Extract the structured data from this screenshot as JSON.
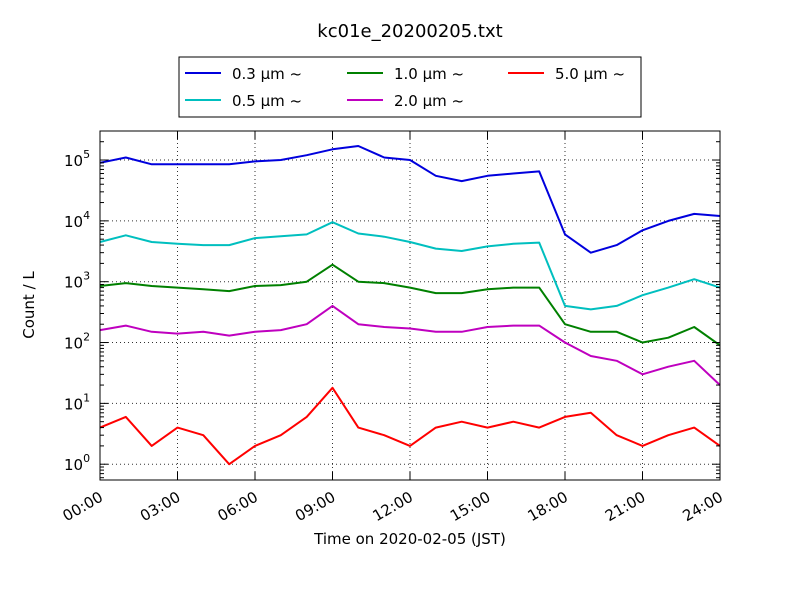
{
  "chart_data": {
    "type": "line",
    "title": "kc01e_20200205.txt",
    "xlabel": "Time on 2020-02-05 (JST)",
    "ylabel": "Count / L",
    "yscale": "log",
    "ylim": [
      0.55,
      300000
    ],
    "xlim": [
      "00:00",
      "24:00"
    ],
    "x_ticks": [
      "00:00",
      "03:00",
      "06:00",
      "09:00",
      "12:00",
      "15:00",
      "18:00",
      "21:00",
      "24:00"
    ],
    "y_ticks": [
      {
        "value": 1,
        "base": "10",
        "exp": "0"
      },
      {
        "value": 10,
        "base": "10",
        "exp": "1"
      },
      {
        "value": 100,
        "base": "10",
        "exp": "2"
      },
      {
        "value": 1000,
        "base": "10",
        "exp": "3"
      },
      {
        "value": 10000,
        "base": "10",
        "exp": "4"
      },
      {
        "value": 100000,
        "base": "10",
        "exp": "5"
      }
    ],
    "grid": true,
    "legend_position": "top-center",
    "x": [
      "00:00",
      "01:00",
      "02:00",
      "03:00",
      "04:00",
      "05:00",
      "06:00",
      "07:00",
      "08:00",
      "09:00",
      "10:00",
      "11:00",
      "12:00",
      "13:00",
      "14:00",
      "15:00",
      "16:00",
      "17:00",
      "18:00",
      "19:00",
      "20:00",
      "21:00",
      "22:00",
      "23:00",
      "24:00"
    ],
    "series": [
      {
        "name": "0.3 µm ~",
        "color": "#0000dd",
        "values": [
          90000,
          110000,
          85000,
          85000,
          85000,
          85000,
          95000,
          100000,
          120000,
          150000,
          170000,
          110000,
          100000,
          55000,
          45000,
          55000,
          60000,
          65000,
          6000,
          3000,
          4000,
          7000,
          10000,
          13000,
          12000
        ]
      },
      {
        "name": "0.5 µm ~",
        "color": "#00bfbf",
        "values": [
          4500,
          5800,
          4500,
          4200,
          4000,
          4000,
          5200,
          5600,
          6000,
          9500,
          6200,
          5500,
          4500,
          3500,
          3200,
          3800,
          4200,
          4400,
          400,
          350,
          400,
          600,
          800,
          1100,
          800
        ]
      },
      {
        "name": "1.0 µm ~",
        "color": "#008000",
        "values": [
          850,
          950,
          850,
          800,
          750,
          700,
          850,
          880,
          1000,
          1900,
          1000,
          950,
          800,
          650,
          650,
          750,
          800,
          800,
          200,
          150,
          150,
          100,
          120,
          180,
          90
        ]
      },
      {
        "name": "2.0 µm ~",
        "color": "#bf00bf",
        "values": [
          160,
          190,
          150,
          140,
          150,
          130,
          150,
          160,
          200,
          400,
          200,
          180,
          170,
          150,
          150,
          180,
          190,
          190,
          100,
          60,
          50,
          30,
          40,
          50,
          20
        ]
      },
      {
        "name": "5.0 µm ~",
        "color": "#ff0000",
        "values": [
          4,
          6,
          2,
          4,
          3,
          1,
          2,
          3,
          6,
          18,
          4,
          3,
          2,
          4,
          5,
          4,
          5,
          4,
          6,
          7,
          3,
          2,
          3,
          4,
          2
        ]
      }
    ]
  }
}
